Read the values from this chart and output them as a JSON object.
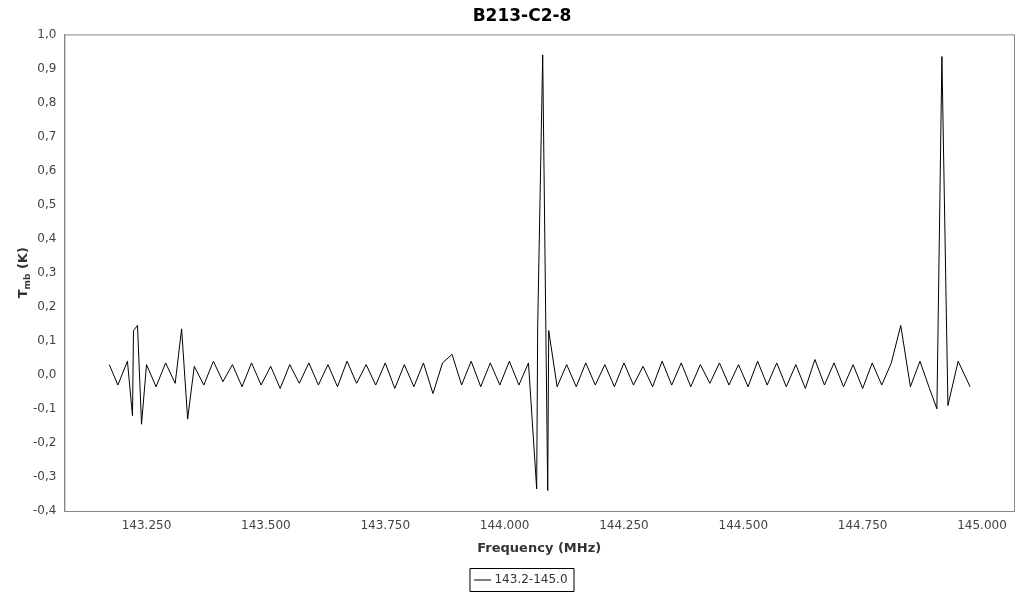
{
  "chart_data": {
    "type": "line",
    "title": "B213-C2-8",
    "xlabel": "Frequency (MHz)",
    "ylabel": "T$_{mb}$ (K)",
    "xlim": [
      143078,
      145067
    ],
    "ylim": [
      -0.4,
      1.0
    ],
    "xticks": [
      {
        "value": 143250,
        "label": "143.250"
      },
      {
        "value": 143500,
        "label": "143.500"
      },
      {
        "value": 143750,
        "label": "143.750"
      },
      {
        "value": 144000,
        "label": "144.000"
      },
      {
        "value": 144250,
        "label": "144.250"
      },
      {
        "value": 144500,
        "label": "144.500"
      },
      {
        "value": 144750,
        "label": "144.750"
      },
      {
        "value": 145000,
        "label": "145.000"
      }
    ],
    "yticks": [
      {
        "value": -0.4,
        "label": "-0,4"
      },
      {
        "value": -0.3,
        "label": "-0,3"
      },
      {
        "value": -0.2,
        "label": "-0,2"
      },
      {
        "value": -0.1,
        "label": "-0,1"
      },
      {
        "value": 0.0,
        "label": "0,0"
      },
      {
        "value": 0.1,
        "label": "0,1"
      },
      {
        "value": 0.2,
        "label": "0,2"
      },
      {
        "value": 0.3,
        "label": "0,3"
      },
      {
        "value": 0.4,
        "label": "0,4"
      },
      {
        "value": 0.5,
        "label": "0,5"
      },
      {
        "value": 0.6,
        "label": "0,6"
      },
      {
        "value": 0.7,
        "label": "0,7"
      },
      {
        "value": 0.8,
        "label": "0,8"
      },
      {
        "value": 0.9,
        "label": "0,9"
      },
      {
        "value": 1.0,
        "label": "1,0"
      }
    ],
    "grid": false,
    "legend": "bottom",
    "marker": "none",
    "line_style": "solid",
    "series": [
      {
        "name": "143.2-145.0",
        "color": "#000000",
        "x": [
          143172,
          143190,
          143210,
          143220.6,
          143222.7,
          143231.1,
          143239.5,
          143250,
          143270,
          143290,
          143310,
          143323.5,
          143336.1,
          143350,
          143370,
          143390,
          143410,
          143430,
          143450,
          143470,
          143490,
          143510,
          143530,
          143550,
          143570,
          143590,
          143610,
          143630,
          143650,
          143670,
          143690,
          143710,
          143730,
          143750,
          143770,
          143790,
          143810,
          143830,
          143850,
          143870,
          143890,
          143910,
          143930,
          143950,
          143970,
          143990,
          144010,
          144030,
          144050,
          144067.2,
          144069.3,
          144079.8,
          144090.3,
          144092.4,
          144110,
          144130,
          144150,
          144170,
          144190,
          144210,
          144230,
          144250,
          144270,
          144290,
          144310,
          144330,
          144350,
          144370,
          144390,
          144410,
          144430,
          144450,
          144470,
          144490,
          144510,
          144530,
          144550,
          144570,
          144590,
          144610,
          144630,
          144650,
          144670,
          144690,
          144710,
          144730,
          144750,
          144770,
          144790,
          144810,
          144829.8,
          144850,
          144870,
          144890,
          144905.5,
          144916,
          144928.6,
          144950,
          144975
        ],
        "values": [
          0.03,
          -0.03,
          0.04,
          -0.12,
          0.13,
          0.145,
          -0.145,
          0.03,
          -0.035,
          0.035,
          -0.025,
          0.135,
          -0.13,
          0.025,
          -0.03,
          0.04,
          -0.02,
          0.03,
          -0.035,
          0.035,
          -0.03,
          0.025,
          -0.04,
          0.03,
          -0.025,
          0.035,
          -0.03,
          0.03,
          -0.035,
          0.04,
          -0.025,
          0.03,
          -0.03,
          0.035,
          -0.04,
          0.03,
          -0.035,
          0.035,
          -0.055,
          0.035,
          0.06,
          -0.03,
          0.04,
          -0.035,
          0.035,
          -0.03,
          0.04,
          -0.03,
          0.035,
          -0.335,
          0.14,
          0.94,
          -0.34,
          0.13,
          -0.035,
          0.03,
          -0.035,
          0.035,
          -0.03,
          0.03,
          -0.035,
          0.035,
          -0.03,
          0.025,
          -0.035,
          0.04,
          -0.03,
          0.035,
          -0.035,
          0.03,
          -0.025,
          0.035,
          -0.03,
          0.03,
          -0.035,
          0.04,
          -0.03,
          0.035,
          -0.035,
          0.03,
          -0.04,
          0.045,
          -0.03,
          0.035,
          -0.035,
          0.03,
          -0.04,
          0.035,
          -0.03,
          0.035,
          0.145,
          -0.035,
          0.04,
          -0.04,
          -0.1,
          0.935,
          -0.09,
          0.04,
          -0.035
        ]
      }
    ]
  }
}
